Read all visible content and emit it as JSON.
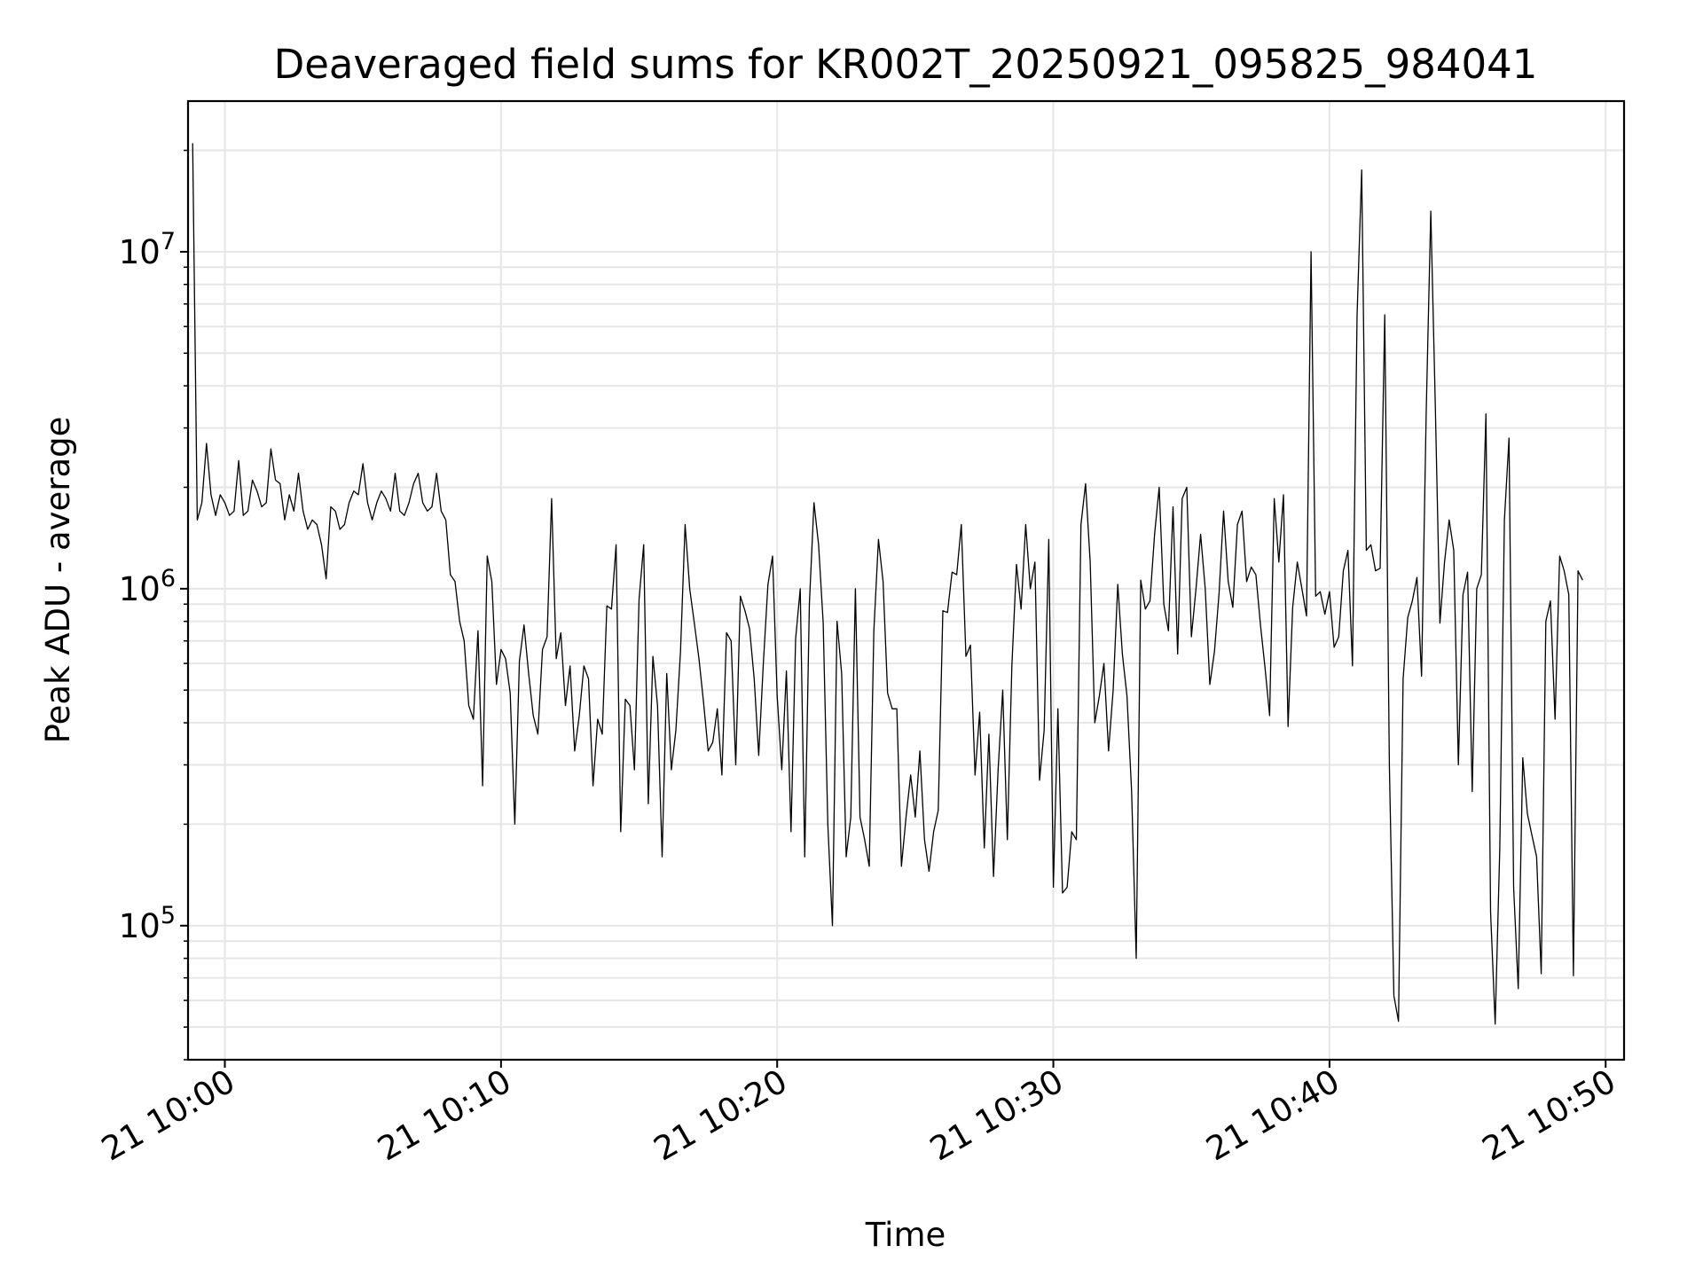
{
  "chart_data": {
    "type": "line",
    "title": "Deaveraged field sums for KR002T_20250921_095825_984041",
    "xlabel": "Time",
    "ylabel": "Peak ADU - average",
    "yscale": "log",
    "ylim": [
      40000,
      28000000
    ],
    "xlim": [
      "2025-09-21 09:58:40",
      "2025-09-21 10:50:40"
    ],
    "grid": true,
    "line_color": "#000000",
    "grid_color": "#e6e6e6",
    "x_ticks": [
      {
        "value": "2025-09-21 10:00",
        "label": "21 10:00"
      },
      {
        "value": "2025-09-21 10:10",
        "label": "21 10:10"
      },
      {
        "value": "2025-09-21 10:20",
        "label": "21 10:20"
      },
      {
        "value": "2025-09-21 10:30",
        "label": "21 10:30"
      },
      {
        "value": "2025-09-21 10:40",
        "label": "21 10:40"
      },
      {
        "value": "2025-09-21 10:50",
        "label": "21 10:50"
      }
    ],
    "y_ticks": [
      {
        "value": 100000,
        "base": "10",
        "exp": "5"
      },
      {
        "value": 1000000,
        "base": "10",
        "exp": "6"
      },
      {
        "value": 10000000,
        "base": "10",
        "exp": "7"
      }
    ],
    "series": [
      {
        "x_start": "2025-09-21 09:58:50",
        "x_step_seconds": 10,
        "values": [
          21000000,
          1600000,
          1800000,
          2700000,
          1900000,
          1650000,
          1900000,
          1800000,
          1650000,
          1700000,
          2400000,
          1650000,
          1700000,
          2100000,
          1950000,
          1750000,
          1800000,
          2600000,
          2100000,
          2050000,
          1600000,
          1900000,
          1700000,
          2200000,
          1700000,
          1500000,
          1600000,
          1550000,
          1350000,
          1070000,
          1750000,
          1700000,
          1500000,
          1550000,
          1800000,
          1950000,
          1900000,
          2350000,
          1800000,
          1600000,
          1800000,
          1950000,
          1850000,
          1700000,
          2200000,
          1700000,
          1650000,
          1800000,
          2050000,
          2200000,
          1800000,
          1700000,
          1750000,
          2200000,
          1700000,
          1600000,
          1100000,
          1050000,
          800000,
          700000,
          450000,
          410000,
          750000,
          260000,
          1250000,
          1050000,
          520000,
          660000,
          620000,
          490000,
          200000,
          610000,
          780000,
          560000,
          420000,
          370000,
          660000,
          720000,
          1850000,
          620000,
          740000,
          450000,
          590000,
          330000,
          420000,
          590000,
          540000,
          260000,
          410000,
          370000,
          890000,
          870000,
          1350000,
          190000,
          470000,
          450000,
          290000,
          930000,
          1350000,
          230000,
          630000,
          450000,
          160000,
          560000,
          290000,
          380000,
          650000,
          1550000,
          1000000,
          790000,
          620000,
          460000,
          330000,
          350000,
          440000,
          280000,
          740000,
          700000,
          300000,
          950000,
          860000,
          760000,
          540000,
          320000,
          600000,
          1030000,
          1250000,
          480000,
          290000,
          570000,
          190000,
          710000,
          1000000,
          160000,
          900000,
          1800000,
          1350000,
          790000,
          200000,
          100000,
          800000,
          560000,
          160000,
          210000,
          1000000,
          210000,
          180000,
          150000,
          750000,
          1400000,
          1050000,
          490000,
          440000,
          440000,
          150000,
          210000,
          280000,
          210000,
          330000,
          180000,
          145000,
          190000,
          220000,
          860000,
          850000,
          1120000,
          1100000,
          1550000,
          630000,
          680000,
          280000,
          430000,
          170000,
          370000,
          140000,
          290000,
          500000,
          180000,
          590000,
          1180000,
          870000,
          1550000,
          1000000,
          1200000,
          270000,
          380000,
          1400000,
          130000,
          440000,
          125000,
          130000,
          190000,
          180000,
          1550000,
          2050000,
          1200000,
          400000,
          480000,
          600000,
          330000,
          500000,
          1030000,
          640000,
          480000,
          250000,
          80000,
          1060000,
          870000,
          920000,
          1450000,
          2000000,
          900000,
          750000,
          1750000,
          640000,
          1850000,
          2000000,
          720000,
          1000000,
          1450000,
          1000000,
          520000,
          650000,
          970000,
          1700000,
          1050000,
          880000,
          1550000,
          1700000,
          1050000,
          1160000,
          1100000,
          780000,
          580000,
          420000,
          1850000,
          1200000,
          1900000,
          390000,
          880000,
          1200000,
          1000000,
          830000,
          10000000,
          950000,
          980000,
          840000,
          980000,
          670000,
          720000,
          1130000,
          1300000,
          590000,
          6500000,
          17500000,
          1300000,
          1350000,
          1130000,
          1150000,
          6500000,
          300000,
          62000,
          52000,
          540000,
          820000,
          920000,
          1080000,
          550000,
          3300000,
          13200000,
          3500000,
          790000,
          1200000,
          1600000,
          1300000,
          300000,
          960000,
          1120000,
          250000,
          1000000,
          1100000,
          3300000,
          110000,
          51000,
          170000,
          1600000,
          2800000,
          130000,
          65000,
          315000,
          215000,
          185000,
          160000,
          72000,
          800000,
          920000,
          410000,
          1250000,
          1130000,
          960000,
          71000,
          1130000,
          1060000
        ]
      }
    ]
  }
}
